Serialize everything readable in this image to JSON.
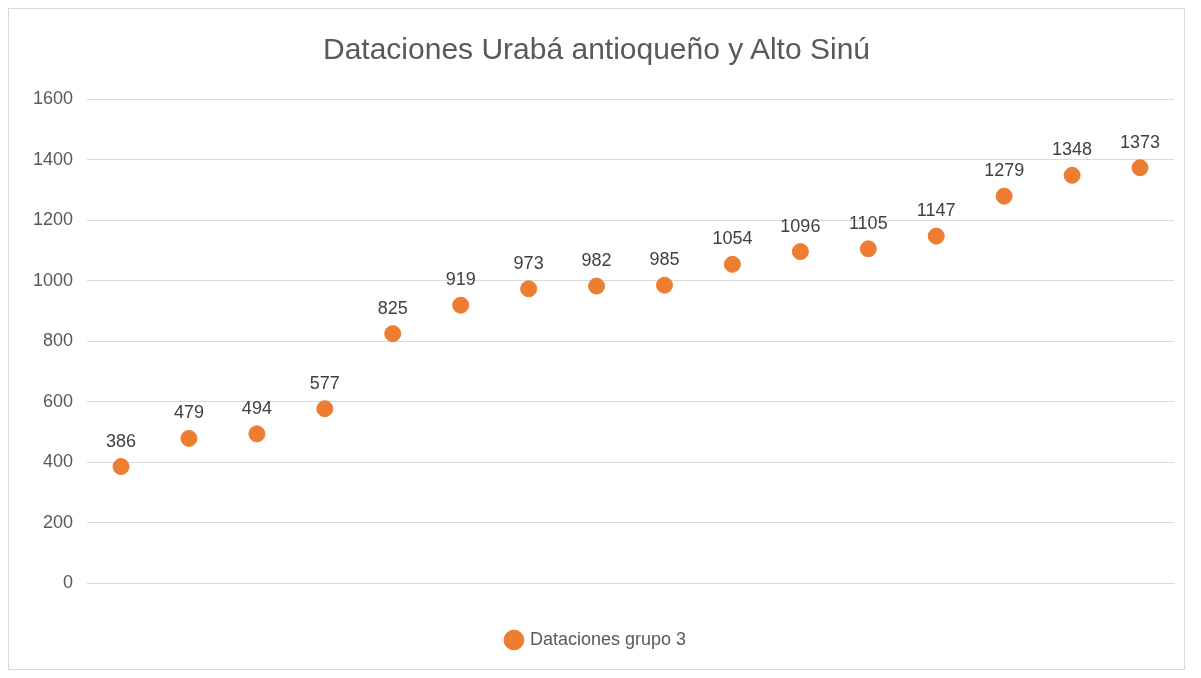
{
  "chart_data": {
    "type": "scatter",
    "title": "Dataciones Urabá antioqueño y Alto Sinú",
    "categories": [
      null,
      null,
      null,
      null,
      null,
      null,
      null,
      null,
      null,
      null,
      null,
      null,
      null,
      null,
      null,
      null
    ],
    "series": [
      {
        "name": "Dataciones grupo 3",
        "color": "#ed7d31",
        "values": [
          386,
          479,
          494,
          577,
          825,
          919,
          973,
          982,
          985,
          1054,
          1096,
          1105,
          1147,
          1279,
          1348,
          1373
        ]
      }
    ],
    "ylim": [
      0,
      1600
    ],
    "yticks": [
      0,
      200,
      400,
      600,
      800,
      1000,
      1200,
      1400,
      1600
    ],
    "grid": "y",
    "legend": "bottom",
    "marker": "circle",
    "data_labels": true
  }
}
